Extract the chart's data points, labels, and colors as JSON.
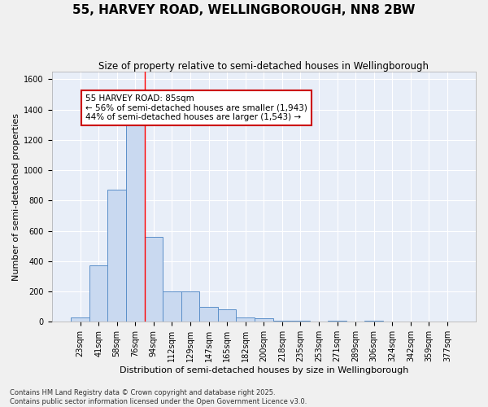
{
  "title": "55, HARVEY ROAD, WELLINGBOROUGH, NN8 2BW",
  "subtitle": "Size of property relative to semi-detached houses in Wellingborough",
  "xlabel": "Distribution of semi-detached houses by size in Wellingborough",
  "ylabel": "Number of semi-detached properties",
  "categories": [
    "23sqm",
    "41sqm",
    "58sqm",
    "76sqm",
    "94sqm",
    "112sqm",
    "129sqm",
    "147sqm",
    "165sqm",
    "182sqm",
    "200sqm",
    "218sqm",
    "235sqm",
    "253sqm",
    "271sqm",
    "289sqm",
    "306sqm",
    "324sqm",
    "342sqm",
    "359sqm",
    "377sqm"
  ],
  "values": [
    30,
    370,
    870,
    1300,
    560,
    200,
    200,
    100,
    80,
    30,
    25,
    5,
    5,
    0,
    5,
    0,
    5,
    0,
    0,
    0,
    0
  ],
  "bar_color": "#c9d9f0",
  "bar_edge_color": "#5b8fc9",
  "ylim": [
    0,
    1650
  ],
  "yticks": [
    0,
    200,
    400,
    600,
    800,
    1000,
    1200,
    1400,
    1600
  ],
  "property_label": "55 HARVEY ROAD: 85sqm",
  "pct_smaller": 56,
  "pct_larger": 44,
  "count_smaller": 1943,
  "count_larger": 1543,
  "vline_x_index": 3.5,
  "annotation_box_color": "#cc0000",
  "footer_line1": "Contains HM Land Registry data © Crown copyright and database right 2025.",
  "footer_line2": "Contains public sector information licensed under the Open Government Licence v3.0.",
  "bg_color": "#e8eef8",
  "grid_color": "#ffffff",
  "title_fontsize": 11,
  "subtitle_fontsize": 8.5,
  "axis_label_fontsize": 8,
  "tick_fontsize": 7,
  "annotation_fontsize": 7.5,
  "footer_fontsize": 6
}
